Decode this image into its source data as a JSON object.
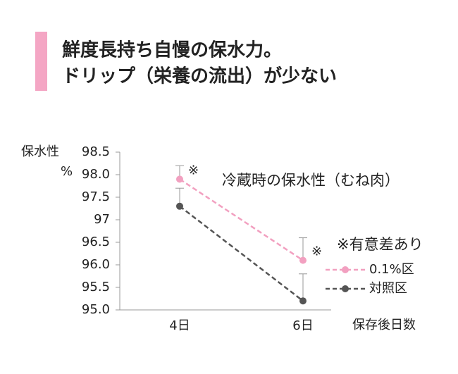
{
  "header": {
    "lines": [
      "鮮度長持ち自慢の保水力。",
      "ドリップ（栄養の流出）が少ない"
    ]
  },
  "chart_data": {
    "type": "line",
    "title": "冷蔵時の保水性（むね肉）",
    "y_label": [
      "保水性",
      "%"
    ],
    "x_label": "保存後日数",
    "categories": [
      "4日",
      "6日"
    ],
    "series": [
      {
        "name": "0.1%区",
        "color": "#f2a0c0",
        "values": [
          97.9,
          96.1
        ],
        "errors": [
          0.3,
          0.5
        ],
        "notes": [
          "※",
          "※"
        ]
      },
      {
        "name": "対照区",
        "color": "#555555",
        "values": [
          97.3,
          95.2
        ],
        "errors": [
          0.4,
          0.6
        ]
      }
    ],
    "annotation": "※有意差あり",
    "ylim": [
      95,
      98.5
    ],
    "yticks": [
      {
        "value": 95,
        "label": "95.0"
      },
      95.5,
      {
        "value": 96,
        "label": "96.0"
      },
      96.5,
      97,
      97.5,
      {
        "value": 98,
        "label": "98.0"
      },
      98.5
    ],
    "dashed": true
  }
}
